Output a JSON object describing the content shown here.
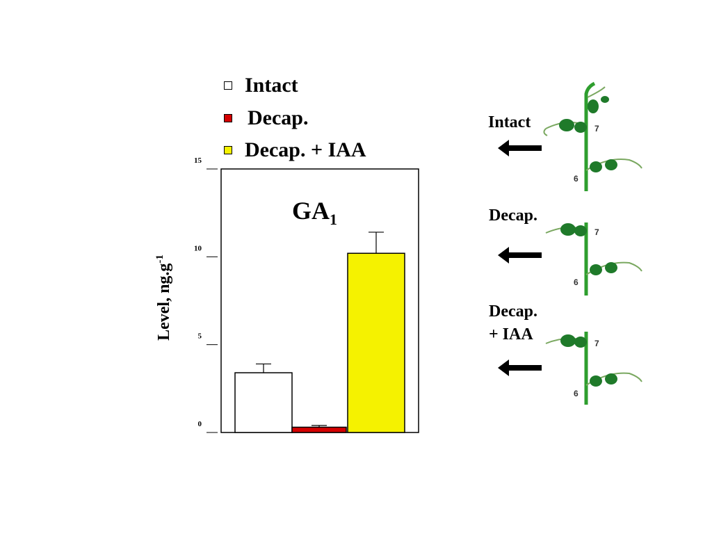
{
  "legend": [
    {
      "label": "Intact",
      "color": "#ffffff"
    },
    {
      "label": "Decap.",
      "color": "#d40000"
    },
    {
      "label": "Decap. + IAA",
      "color": "#f5f200"
    }
  ],
  "plants": [
    {
      "label": "Intact",
      "node_upper": "7",
      "node_lower": "6"
    },
    {
      "label": "Decap.",
      "node_upper": "7",
      "node_lower": "6"
    },
    {
      "label": "Decap.\n+ IAA",
      "node_upper": "7",
      "node_lower": "6"
    }
  ],
  "colors": {
    "bar_outline": "#000000",
    "stem": "#2e9e2e",
    "leaf": "#1f7a2a",
    "tendril": "#7aa860"
  },
  "chart_data": {
    "type": "bar",
    "title_main": "GA",
    "title_sub": "1",
    "ylabel_main": "Level, ng.g",
    "ylabel_sup": "-1",
    "ylim": [
      0,
      15
    ],
    "yticks": [
      0,
      5,
      10,
      15
    ],
    "categories": [
      "Intact",
      "Decap.",
      "Decap. + IAA"
    ],
    "values": [
      3.4,
      0.3,
      10.2
    ],
    "errors": [
      0.5,
      0.1,
      1.2
    ],
    "colors": [
      "#ffffff",
      "#d40000",
      "#f5f200"
    ],
    "grid": false
  }
}
